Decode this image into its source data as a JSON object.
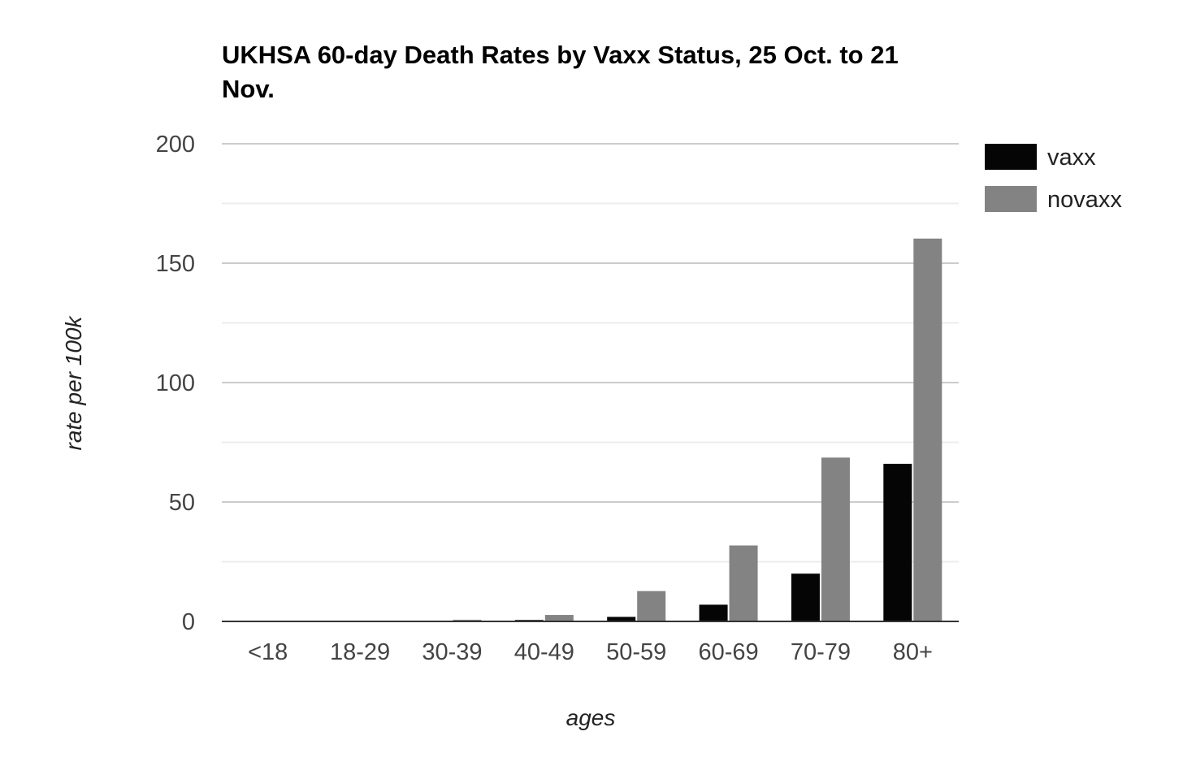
{
  "chart_data": {
    "type": "bar",
    "title_lines": [
      "UKHSA 60-day Death Rates by Vaxx Status, 25 Oct. to 21",
      "Nov."
    ],
    "xlabel": "ages",
    "ylabel": "rate per 100k",
    "categories": [
      "<18",
      "18-29",
      "30-39",
      "40-49",
      "50-59",
      "60-69",
      "70-79",
      "80+"
    ],
    "series": [
      {
        "name": "vaxx",
        "color": "#050505",
        "values": [
          0.05,
          0.1,
          0.2,
          0.6,
          1.9,
          7.0,
          20.0,
          66.0
        ]
      },
      {
        "name": "novaxx",
        "color": "#838383",
        "values": [
          0.05,
          0.2,
          0.7,
          2.7,
          12.7,
          31.8,
          68.6,
          160.3
        ]
      }
    ],
    "ylim": [
      0,
      200
    ],
    "yticks": [
      0,
      50,
      100,
      150,
      200
    ],
    "minor_gridlines": true,
    "legend_position": "right"
  }
}
